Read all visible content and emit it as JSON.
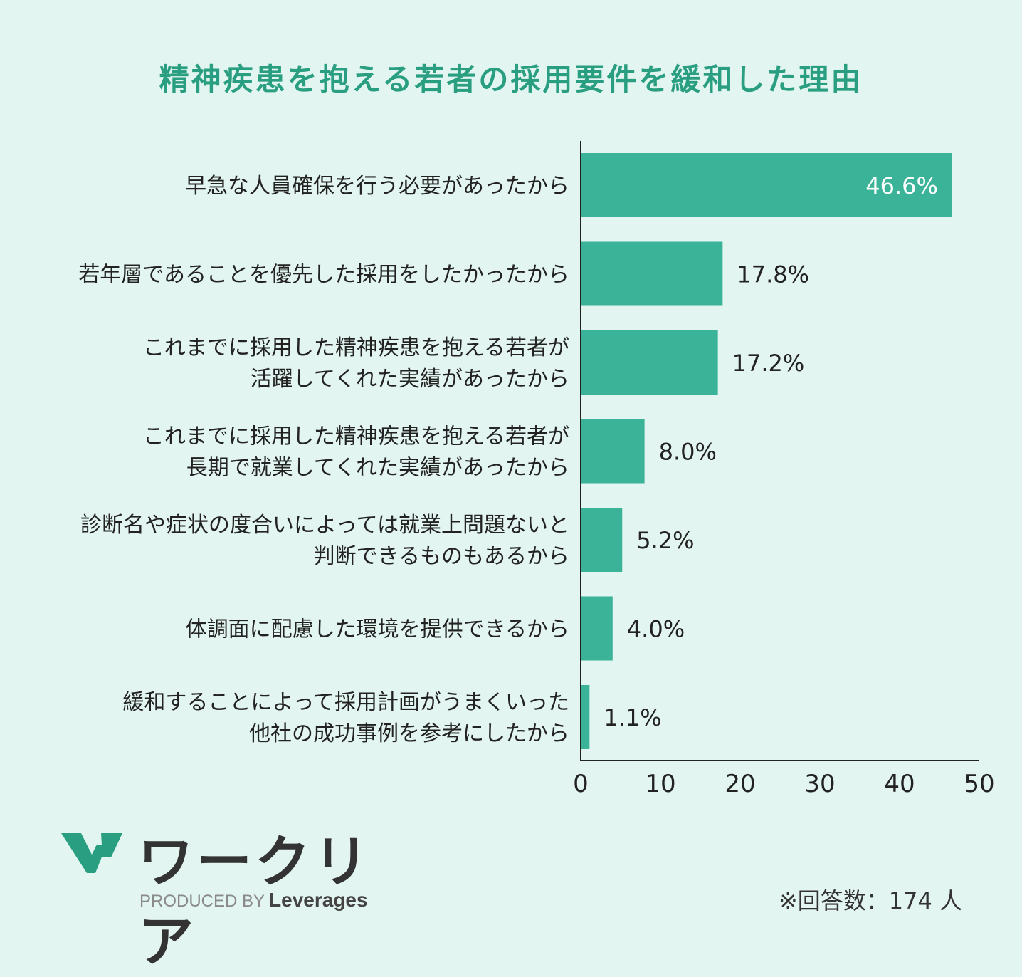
{
  "chart_data": {
    "type": "bar",
    "orientation": "horizontal",
    "title": "精神疾患を抱える若者の採用要件を緩和した理由",
    "categories": [
      [
        "早急な人員確保を行う必要があったから"
      ],
      [
        "若年層であることを優先した採用をしたかったから"
      ],
      [
        "これまでに採用した精神疾患を抱える若者が",
        "活躍してくれた実績があったから"
      ],
      [
        "これまでに採用した精神疾患を抱える若者が",
        "長期で就業してくれた実績があったから"
      ],
      [
        "診断名や症状の度合いによっては就業上問題ないと",
        "判断できるものもあるから"
      ],
      [
        "体調面に配慮した環境を提供できるから"
      ],
      [
        "緩和することによって採用計画がうまくいった",
        "他社の成功事例を参考にしたから"
      ]
    ],
    "values": [
      46.6,
      17.8,
      17.2,
      8.0,
      5.2,
      4.0,
      1.1
    ],
    "value_labels": [
      "46.6%",
      "17.8%",
      "17.2%",
      "8.0%",
      "5.2%",
      "4.0%",
      "1.1%"
    ],
    "xlim": [
      0,
      50
    ],
    "xticks": [
      "0",
      "10",
      "20",
      "30",
      "40",
      "50"
    ],
    "bar_color": "#3ab399",
    "grid": false,
    "legend": "none"
  },
  "branding": {
    "logo_text": "ワークリア",
    "produced_by": "PRODUCED BY",
    "brand": "Leverages",
    "logo_color": "#2a9e80"
  },
  "footnote": "※回答数：174 人"
}
